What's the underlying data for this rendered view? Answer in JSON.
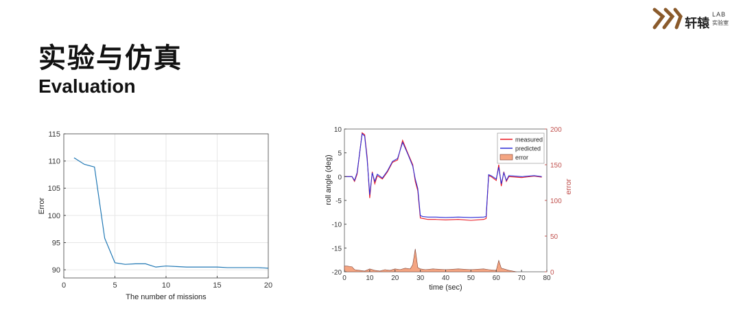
{
  "header": {
    "title_cn": "实验与仿真",
    "title_en": "Evaluation"
  },
  "logo": {
    "name": "轩辕",
    "lab": "LAB",
    "sub": "实验室",
    "accent": "#8a5a2b"
  },
  "chart_data": [
    {
      "type": "line",
      "xlabel": "The number of missions",
      "ylabel": "Error",
      "xlim": [
        0,
        20
      ],
      "ylim": [
        88.5,
        115
      ],
      "xticks": [
        0,
        5,
        10,
        15,
        20
      ],
      "yticks": [
        90,
        95,
        100,
        105,
        110,
        115
      ],
      "grid": true,
      "series": [
        {
          "color": "#1f77b4",
          "x": [
            1,
            2,
            3,
            4,
            5,
            6,
            7,
            8,
            9,
            10,
            11,
            12,
            13,
            14,
            15,
            16,
            17,
            18,
            19,
            20
          ],
          "y": [
            110.6,
            109.4,
            108.9,
            95.8,
            91.3,
            91.0,
            91.1,
            91.1,
            90.5,
            90.7,
            90.6,
            90.5,
            90.5,
            90.5,
            90.5,
            90.4,
            90.4,
            90.4,
            90.4,
            90.3
          ]
        }
      ]
    },
    {
      "type": "line",
      "xlabel": "time (sec)",
      "ylabel": "roll angle (deg)",
      "ylabel_right": "error",
      "xlim": [
        0,
        80
      ],
      "ylim": [
        -20,
        10
      ],
      "ylim_right": [
        0,
        200
      ],
      "xticks": [
        0,
        10,
        20,
        30,
        40,
        50,
        60,
        70,
        80
      ],
      "yticks": [
        -20,
        -15,
        -10,
        -5,
        0,
        5,
        10
      ],
      "yticks_right": [
        0,
        50,
        100,
        150,
        200
      ],
      "legend": {
        "placement": "top-right"
      },
      "series": [
        {
          "name": "measured",
          "color": "#e8141e",
          "x": [
            0,
            3,
            4,
            5,
            7,
            8,
            9,
            10,
            11,
            12,
            13,
            15,
            17,
            19,
            21,
            23,
            25,
            27,
            28,
            29,
            30,
            31,
            33,
            36,
            40,
            45,
            50,
            55,
            56,
            57,
            58,
            60,
            61,
            62,
            63,
            64,
            65,
            70,
            75,
            78
          ],
          "y": [
            0,
            0,
            -1,
            0.5,
            9.2,
            8.8,
            4,
            -4.5,
            1,
            -1.5,
            0.2,
            -0.5,
            1,
            3,
            3.5,
            7.6,
            5,
            2.5,
            -1,
            -3,
            -8.7,
            -8.8,
            -9.0,
            -9.0,
            -9.1,
            -9.0,
            -9.2,
            -9.0,
            -8.8,
            0.2,
            0,
            -0.8,
            2.5,
            -2,
            1,
            -1,
            0,
            -0.2,
            0.1,
            -0.1
          ]
        },
        {
          "name": "predicted",
          "color": "#2b2bd6",
          "x": [
            0,
            3,
            4,
            5,
            7,
            8,
            9,
            10,
            11,
            12,
            13,
            15,
            17,
            19,
            21,
            23,
            25,
            27,
            28,
            29,
            30,
            31,
            33,
            36,
            40,
            45,
            50,
            55,
            56,
            57,
            58,
            60,
            61,
            62,
            63,
            64,
            65,
            70,
            75,
            78
          ],
          "y": [
            0,
            0,
            -0.8,
            0.8,
            9.0,
            8.5,
            3.5,
            -3.8,
            0.8,
            -1,
            0.5,
            -0.3,
            1.2,
            3.2,
            3.8,
            7.2,
            4.8,
            2.2,
            -0.5,
            -2.5,
            -8.2,
            -8.4,
            -8.5,
            -8.5,
            -8.6,
            -8.5,
            -8.6,
            -8.5,
            -8.4,
            0.4,
            0.2,
            -0.5,
            2,
            -1.5,
            0.8,
            -0.8,
            0.2,
            0,
            0.2,
            0
          ]
        },
        {
          "name": "error",
          "color": "#f4a582",
          "kind": "area",
          "axis": "right",
          "x": [
            0,
            1,
            3,
            4,
            6,
            8,
            10,
            12,
            14,
            16,
            18,
            20,
            22,
            24,
            26,
            27,
            28,
            29,
            30,
            32,
            35,
            40,
            45,
            50,
            55,
            57,
            60,
            61,
            62,
            63,
            65,
            68
          ],
          "y": [
            8,
            8,
            7,
            3,
            2,
            1,
            4,
            2,
            1,
            3,
            2,
            4,
            3,
            5,
            4,
            10,
            32,
            6,
            4,
            3,
            4,
            3,
            4,
            3,
            4,
            3,
            2,
            16,
            5,
            4,
            2,
            0
          ]
        }
      ]
    }
  ]
}
